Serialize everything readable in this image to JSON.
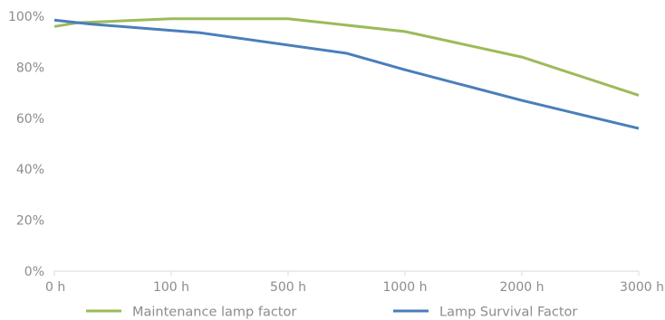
{
  "chart_data": {
    "type": "line",
    "categories": [
      "0 h",
      "100 h",
      "500 h",
      "1000 h",
      "2000 h",
      "3000 h"
    ],
    "y_ticks": [
      "0%",
      "20%",
      "40%",
      "60%",
      "80%",
      "100%"
    ],
    "ylim": [
      0,
      100
    ],
    "grid": false,
    "legend_position": "bottom",
    "series": [
      {
        "name": "Maintenance lamp factor",
        "color": "#9bbb59",
        "x": [
          0,
          0.2,
          1,
          2,
          3,
          4,
          5
        ],
        "values": [
          96,
          97.5,
          99,
          99,
          94,
          84,
          69
        ]
      },
      {
        "name": "Lamp Survival Factor",
        "color": "#4a7ebb",
        "x": [
          0,
          0.3,
          1.25,
          2.5,
          3,
          4,
          5
        ],
        "values": [
          98.5,
          97,
          93.5,
          85.5,
          79,
          67,
          56
        ]
      }
    ]
  }
}
